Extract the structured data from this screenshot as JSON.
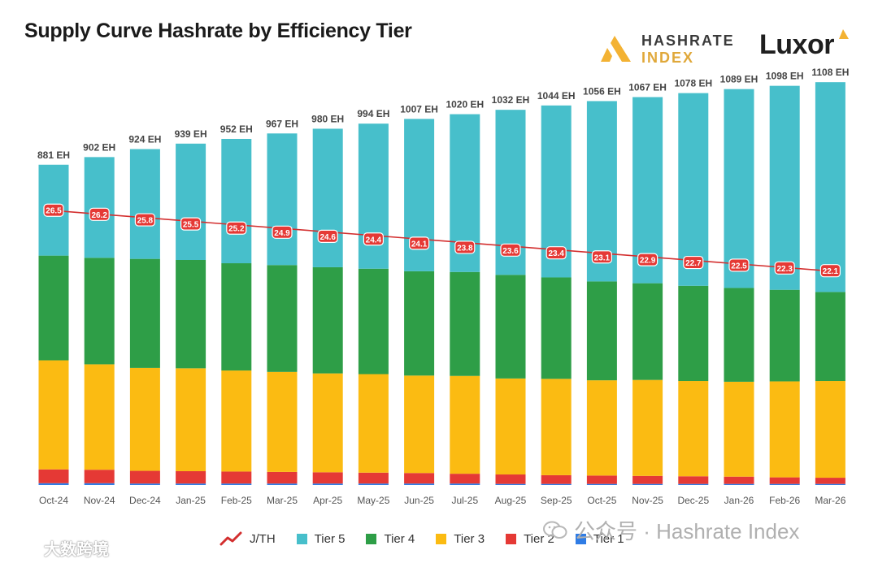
{
  "title": "Supply Curve Hashrate by Efficiency Tier",
  "logos": {
    "hashrate_index_line1": "HASHRATE",
    "hashrate_index_line2": "INDEX",
    "luxor": "Luxor"
  },
  "colors": {
    "tier5": "#47bfcb",
    "tier4": "#2e9e47",
    "tier3": "#fbbb12",
    "tier2": "#e53935",
    "tier1": "#2f7ce5",
    "jth_line": "#d32f2f",
    "jth_badge": "#e53935"
  },
  "legend": [
    {
      "label": "J/TH",
      "key": "jth",
      "icon": "line-trend-icon"
    },
    {
      "label": "Tier 5",
      "key": "tier5"
    },
    {
      "label": "Tier 4",
      "key": "tier4"
    },
    {
      "label": "Tier 3",
      "key": "tier3"
    },
    {
      "label": "Tier 2",
      "key": "tier2"
    },
    {
      "label": "Tier 1",
      "key": "tier1"
    }
  ],
  "watermark": "公众号 · Hashrate Index",
  "watermark2": "大数跨境",
  "chart_data": {
    "type": "bar",
    "stacked": true,
    "categories": [
      "Oct-24",
      "Nov-24",
      "Dec-24",
      "Jan-25",
      "Feb-25",
      "Mar-25",
      "Apr-25",
      "May-25",
      "Jun-25",
      "Jul-25",
      "Aug-25",
      "Sep-25",
      "Oct-25",
      "Nov-25",
      "Dec-25",
      "Jan-26",
      "Feb-26",
      "Mar-26"
    ],
    "totals": [
      881,
      902,
      924,
      939,
      952,
      967,
      980,
      994,
      1007,
      1020,
      1032,
      1044,
      1056,
      1067,
      1078,
      1089,
      1098,
      1108
    ],
    "total_labels": [
      "881 EH",
      "902 EH",
      "924 EH",
      "939 EH",
      "952 EH",
      "967 EH",
      "980 EH",
      "994 EH",
      "1007 EH",
      "1020 EH",
      "1032 EH",
      "1044 EH",
      "1056 EH",
      "1067 EH",
      "1078 EH",
      "1089 EH",
      "1098 EH",
      "1108 EH"
    ],
    "series": [
      {
        "name": "Tier 1",
        "key": "tier1",
        "values": [
          5,
          5,
          4,
          4,
          4,
          4,
          4,
          4,
          4,
          4,
          3,
          3,
          3,
          3,
          3,
          3,
          3,
          3
        ]
      },
      {
        "name": "Tier 2",
        "key": "tier2",
        "values": [
          38,
          37,
          35,
          34,
          33,
          32,
          31,
          30,
          29,
          27,
          26,
          24,
          23,
          22,
          21,
          20,
          18,
          17
        ]
      },
      {
        "name": "Tier 3",
        "key": "tier3",
        "values": [
          300,
          290,
          283,
          283,
          278,
          275,
          272,
          271,
          268,
          269,
          264,
          265,
          262,
          264,
          262,
          261,
          264,
          266
        ]
      },
      {
        "name": "Tier 4",
        "key": "tier4",
        "values": [
          288,
          293,
          300,
          298,
          295,
          294,
          292,
          290,
          287,
          286,
          285,
          279,
          272,
          266,
          262,
          258,
          252,
          245
        ]
      },
      {
        "name": "Tier 5",
        "key": "tier5",
        "values": [
          250,
          277,
          302,
          320,
          342,
          362,
          381,
          399,
          419,
          434,
          454,
          473,
          496,
          512,
          530,
          547,
          561,
          577
        ]
      }
    ],
    "jth": {
      "name": "J/TH",
      "values": [
        26.5,
        26.2,
        25.8,
        25.5,
        25.2,
        24.9,
        24.6,
        24.4,
        24.1,
        23.8,
        23.6,
        23.4,
        23.1,
        22.9,
        22.7,
        22.5,
        22.3,
        22.1
      ],
      "labels": [
        "26.5",
        "26.2",
        "25.8",
        "25.5",
        "25.2",
        "24.9",
        "24.6",
        "24.4",
        "24.1",
        "23.8",
        "23.6",
        "23.4",
        "23.1",
        "22.9",
        "22.7",
        "22.5",
        "22.3",
        "22.1"
      ],
      "trend_line": {
        "start": 26.5,
        "end": 22.1
      }
    },
    "ylim": [
      0,
      1200
    ],
    "grid": false,
    "legend_position": "bottom"
  }
}
